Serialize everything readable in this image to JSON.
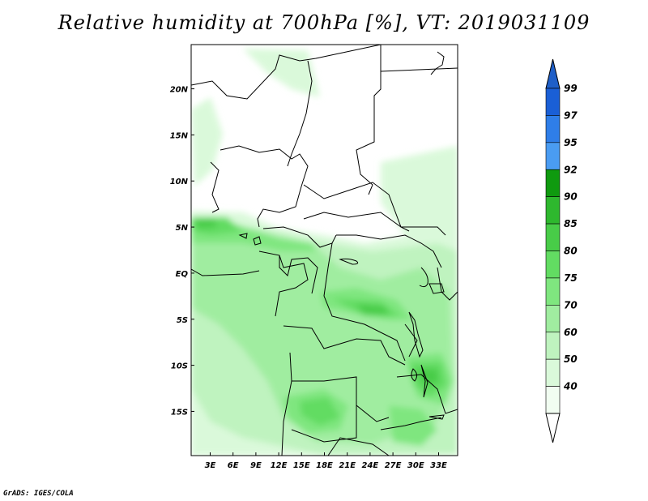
{
  "title": "Relative humidity at 700hPa [%], VT: 2019031109",
  "credit": "GrADS: IGES/COLA",
  "map": {
    "lat_labels": [
      "20N",
      "15N",
      "10N",
      "5N",
      "EQ",
      "5S",
      "10S",
      "15S"
    ],
    "lat_values": [
      20,
      15,
      10,
      5,
      0,
      -5,
      -10,
      -15
    ],
    "lon_labels": [
      "3E",
      "6E",
      "9E",
      "12E",
      "15E",
      "18E",
      "21E",
      "24E",
      "27E",
      "30E",
      "33E"
    ],
    "lon_values": [
      3,
      6,
      9,
      12,
      15,
      18,
      21,
      24,
      27,
      30,
      33
    ],
    "lon_range": [
      0.5,
      35.5
    ],
    "lat_range": [
      -19.8,
      24.8
    ]
  },
  "colorbar": {
    "levels": [
      "99",
      "97",
      "95",
      "92",
      "90",
      "85",
      "80",
      "75",
      "70",
      "60",
      "50",
      "40"
    ],
    "colors": [
      "#1a5fd6",
      "#2f7ee8",
      "#4a9cf2",
      "#0f9a0f",
      "#2eb82e",
      "#48cc48",
      "#62dc62",
      "#7fe67f",
      "#a0eda0",
      "#bff3bf",
      "#daf9da",
      "#f1fdf1"
    ],
    "top_color": "#1f5fc8",
    "bottom_color": "#ffffff"
  }
}
